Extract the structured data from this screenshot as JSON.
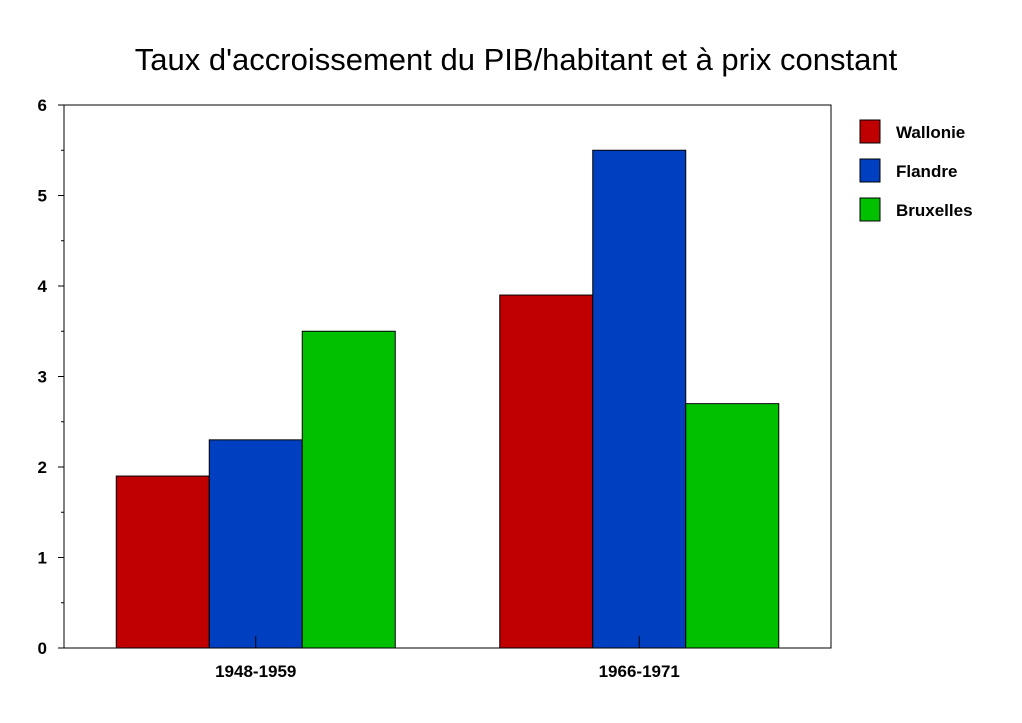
{
  "chart_data": {
    "type": "bar",
    "title": "Taux d'accroissement du PIB/habitant et à prix constant",
    "categories": [
      "1948-1959",
      "1966-1971"
    ],
    "series": [
      {
        "name": "Wallonie",
        "values": [
          1.9,
          3.9
        ],
        "color": "#c00000"
      },
      {
        "name": "Flandre",
        "values": [
          2.3,
          5.5
        ],
        "color": "#0040c0"
      },
      {
        "name": "Bruxelles",
        "values": [
          3.5,
          2.7
        ],
        "color": "#00c000"
      }
    ],
    "ylim": [
      0,
      6
    ],
    "yticks": [
      "0",
      "1",
      "2",
      "3",
      "4",
      "5",
      "6"
    ],
    "grid": false,
    "legend": "right"
  }
}
